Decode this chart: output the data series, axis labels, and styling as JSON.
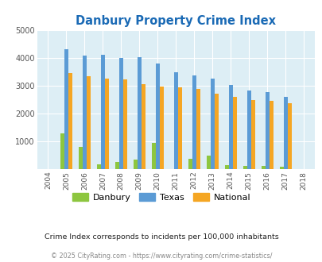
{
  "title": "Danbury Property Crime Index",
  "years": [
    "2004",
    "2005",
    "2006",
    "2007",
    "2008",
    "2009",
    "2010",
    "2011",
    "2012",
    "2013",
    "2014",
    "2015",
    "2016",
    "2017",
    "2018"
  ],
  "danbury": [
    0,
    1270,
    800,
    170,
    260,
    330,
    940,
    0,
    360,
    490,
    140,
    110,
    120,
    80,
    0
  ],
  "texas": [
    0,
    4300,
    4080,
    4100,
    4000,
    4030,
    3800,
    3480,
    3370,
    3250,
    3040,
    2840,
    2760,
    2590,
    0
  ],
  "national": [
    0,
    3450,
    3340,
    3250,
    3220,
    3050,
    2960,
    2930,
    2890,
    2720,
    2600,
    2490,
    2460,
    2380,
    0
  ],
  "danbury_color": "#8dc63f",
  "texas_color": "#5b9bd5",
  "national_color": "#f5a623",
  "bg_color": "#ddeef5",
  "ylim": [
    0,
    5000
  ],
  "yticks": [
    0,
    1000,
    2000,
    3000,
    4000,
    5000
  ],
  "subtitle": "Crime Index corresponds to incidents per 100,000 inhabitants",
  "footer": "© 2025 CityRating.com - https://www.cityrating.com/crime-statistics/",
  "title_color": "#1a6ab5",
  "subtitle_color": "#222222",
  "footer_color": "#888888",
  "legend_labels": [
    "Danbury",
    "Texas",
    "National"
  ]
}
